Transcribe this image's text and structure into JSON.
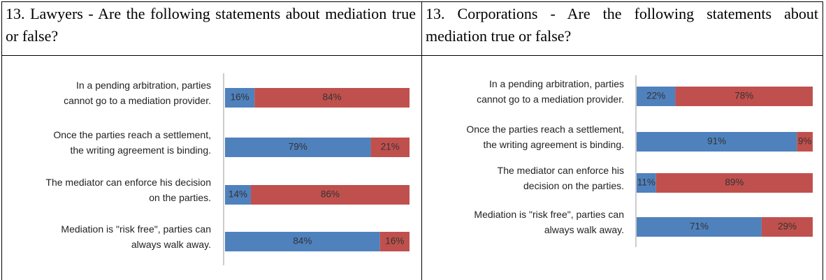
{
  "table": {
    "headers": [
      "13. Lawyers - Are the following statements about mediation true or false?",
      "13. Corporations - Are the following statements about mediation true or false?"
    ]
  },
  "chart_data": [
    {
      "type": "bar",
      "orientation": "horizontal",
      "stacked": true,
      "xlim": [
        0,
        100
      ],
      "categories": [
        "In a pending arbitration, parties\ncannot go to a mediation provider.",
        "Once the parties reach a settlement,\nthe writing agreement is binding.",
        "The mediator can enforce his decision\non the parties.",
        "Mediation is \"risk free\", parties can\nalways walk away."
      ],
      "series": [
        {
          "color": "#4f81bd",
          "values": [
            16,
            79,
            14,
            84
          ],
          "value_labels": [
            "16%",
            "79%",
            "14%",
            "84%"
          ]
        },
        {
          "color": "#c0504d",
          "values": [
            84,
            21,
            86,
            16
          ],
          "value_labels": [
            "84%",
            "21%",
            "86%",
            "16%"
          ]
        }
      ]
    },
    {
      "type": "bar",
      "orientation": "horizontal",
      "stacked": true,
      "xlim": [
        0,
        100
      ],
      "categories": [
        "In a pending arbitration, parties\ncannot go to a mediation provider.",
        "Once the parties reach a settlement,\nthe writing agreement is binding.",
        "The mediator can enforce his\ndecision on the parties.",
        "Mediation is \"risk free\", parties can\nalways walk away."
      ],
      "series": [
        {
          "color": "#4f81bd",
          "values": [
            22,
            91,
            11,
            71
          ],
          "value_labels": [
            "22%",
            "91%",
            "11%",
            "71%"
          ]
        },
        {
          "color": "#c0504d",
          "values": [
            78,
            9,
            89,
            29
          ],
          "value_labels": [
            "78%",
            "9%",
            "89%",
            "29%"
          ]
        }
      ]
    }
  ]
}
